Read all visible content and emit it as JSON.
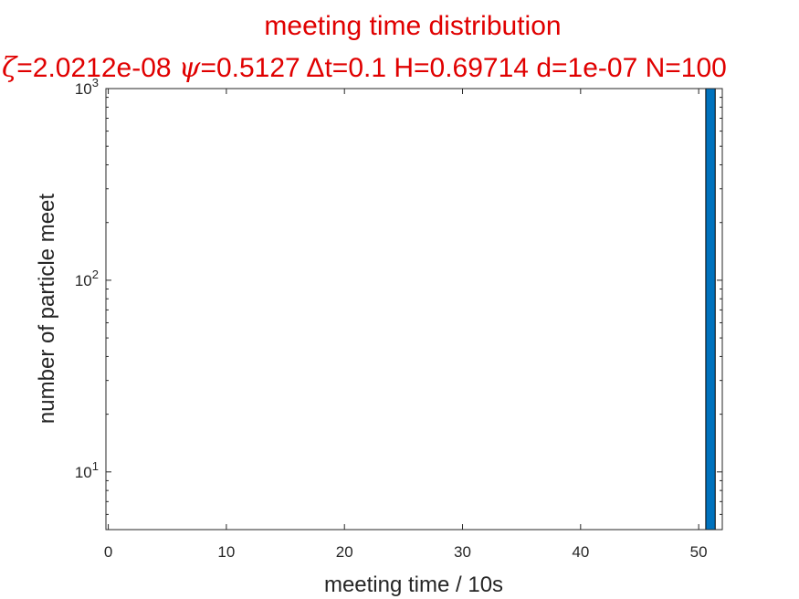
{
  "chart_data": {
    "type": "bar",
    "title": "meeting time distribution",
    "subtitle": {
      "zeta_symbol": "ζ",
      "zeta_value": "=2.0212e-08 ",
      "psi_symbol": "ψ",
      "psi_value": "=0.5127 ",
      "rest": "Δt=0.1 H=0.69714 d=1e-07 N=100"
    },
    "xlabel": "meeting time / 10s",
    "ylabel": "number of particle meet",
    "x_scale": "linear",
    "y_scale": "log",
    "xlim": [
      -0.2,
      52
    ],
    "ylim": [
      5,
      1000
    ],
    "x_ticks": [
      0,
      10,
      20,
      30,
      40,
      50
    ],
    "y_ticks": [
      {
        "value": 10,
        "base": "10",
        "exp": "1"
      },
      {
        "value": 100,
        "base": "10",
        "exp": "2"
      },
      {
        "value": 1000,
        "base": "10",
        "exp": "3"
      }
    ],
    "bars": [
      {
        "x": 51,
        "width": 0.8,
        "value": 1000
      }
    ],
    "bar_color": "#0072BD",
    "title_color": "#E00000",
    "grid": false
  }
}
